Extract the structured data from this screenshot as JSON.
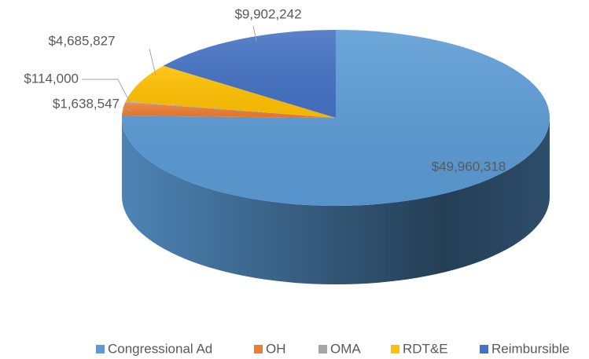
{
  "chart_data": {
    "type": "pie3d",
    "categories": [
      "Congressional Ad",
      "OH",
      "OMA",
      "RDT&E",
      "Reimbursible"
    ],
    "values": [
      49960318,
      1638547,
      114000,
      4685827,
      9902242
    ],
    "value_labels": [
      "$49,960,318",
      "$1,638,547",
      "$114,000",
      "$4,685,827",
      "$9,902,242"
    ],
    "colors": [
      "#5b9bd5",
      "#ed7d31",
      "#a5a5a5",
      "#ffc000",
      "#4472c4"
    ],
    "legend": "bottom"
  }
}
